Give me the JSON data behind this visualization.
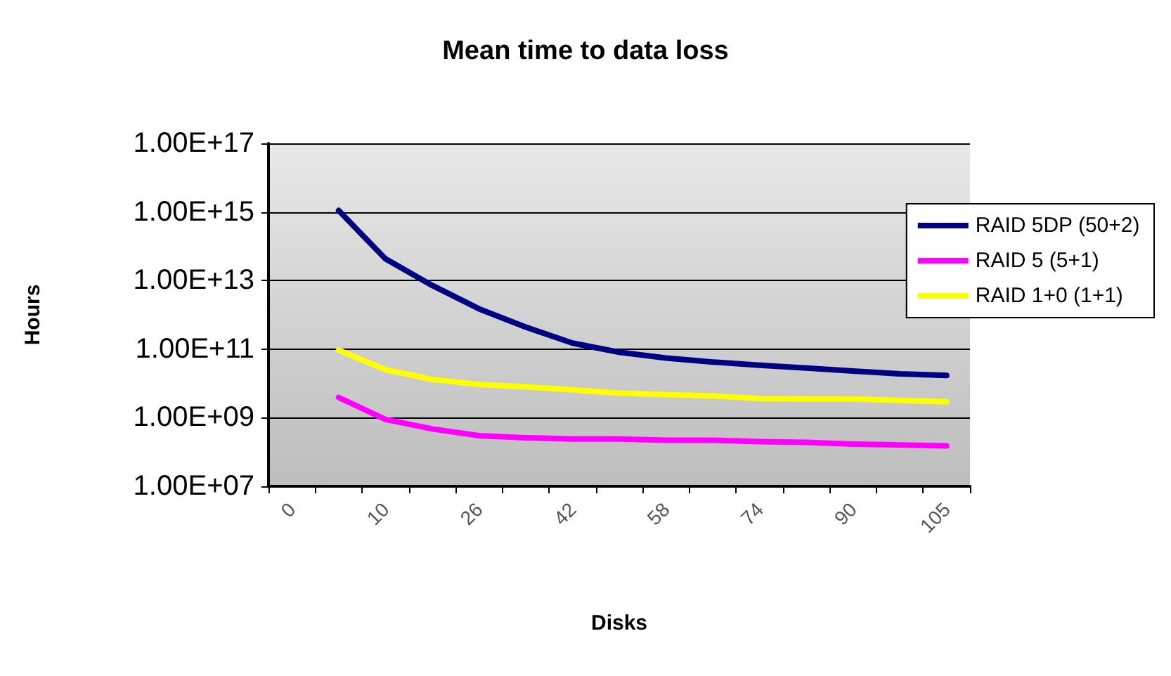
{
  "chart_data": {
    "type": "line",
    "title": "Mean time to data loss",
    "xlabel": "Disks",
    "ylabel": "Hours",
    "categories": [
      "0",
      null,
      "10",
      null,
      "26",
      null,
      "42",
      null,
      "58",
      null,
      "74",
      null,
      "90",
      null,
      "105"
    ],
    "series": [
      {
        "name": "RAID 5DP (50+2)",
        "color": "#000080",
        "values": [
          null,
          1100000000000000.0,
          43000000000000.0,
          7200000000000.0,
          1500000000000.0,
          440000000000.0,
          150000000000.0,
          81000000000.0,
          55000000000.0,
          42000000000.0,
          34000000000.0,
          28000000000.0,
          23000000000.0,
          19000000000.0,
          17000000000.0
        ]
      },
      {
        "name": "RAID 5 (5+1)",
        "color": "#ff00ff",
        "values": [
          null,
          3900000000.0,
          890000000.0,
          470000000.0,
          300000000.0,
          260000000.0,
          240000000.0,
          240000000.0,
          220000000.0,
          220000000.0,
          200000000.0,
          190000000.0,
          170000000.0,
          160000000.0,
          150000000.0
        ]
      },
      {
        "name": "RAID 1+0 (1+1)",
        "color": "#ffff00",
        "values": [
          null,
          93000000000.0,
          25000000000.0,
          13000000000.0,
          9300000000.0,
          7900000000.0,
          6500000000.0,
          5200000000.0,
          4700000000.0,
          4300000000.0,
          3600000000.0,
          3500000000.0,
          3500000000.0,
          3200000000.0,
          2900000000.0
        ]
      }
    ],
    "log": "y",
    "ylim": [
      10000000.0,
      1e+17
    ],
    "yticks": [
      {
        "value": 10000000.0,
        "label": "1.00E+07"
      },
      {
        "value": 1000000000.0,
        "label": "1.00E+09"
      },
      {
        "value": 100000000000.0,
        "label": "1.00E+11"
      },
      {
        "value": 10000000000000.0,
        "label": "1.00E+13"
      },
      {
        "value": 1000000000000000.0,
        "label": "1.00E+15"
      },
      {
        "value": 1e+17,
        "label": "1.00E+17"
      }
    ],
    "grid": "y",
    "legend": "top right",
    "marker": "none",
    "line_style": "solid"
  }
}
